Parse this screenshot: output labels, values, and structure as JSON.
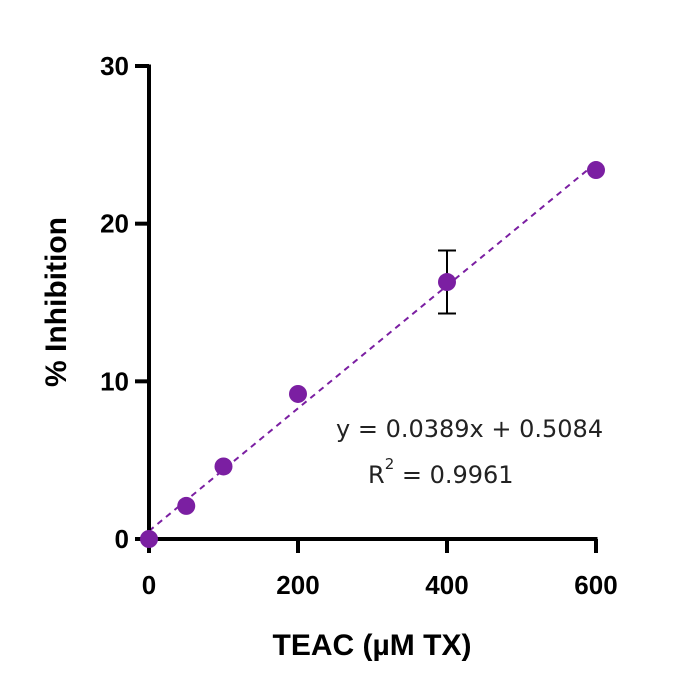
{
  "chart_data": {
    "type": "scatter",
    "xlabel": "TEAC (µM TX)",
    "ylabel": "% Inhibition",
    "xlim": [
      0,
      600
    ],
    "ylim": [
      0,
      30
    ],
    "xticks": [
      0,
      200,
      400,
      600
    ],
    "yticks": [
      0,
      10,
      20,
      30
    ],
    "grid": false,
    "series": [
      {
        "x": [
          0,
          50,
          100,
          200,
          400,
          600
        ],
        "y": [
          0,
          2.1,
          4.6,
          9.2,
          16.3,
          23.4
        ],
        "error_y": [
          0,
          0,
          0,
          0,
          2.0,
          0
        ],
        "color": "#7B1FA2"
      }
    ],
    "fit": {
      "slope": 0.0389,
      "intercept": 0.5084,
      "style": "dashed",
      "color": "#7B1FA2",
      "x_range": [
        0,
        600
      ]
    },
    "annotations": {
      "equation": "y = 0.0389x + 0.5084",
      "r2_base": "R",
      "r2_exp": "2",
      "r2_rest": " = 0.9961"
    }
  }
}
